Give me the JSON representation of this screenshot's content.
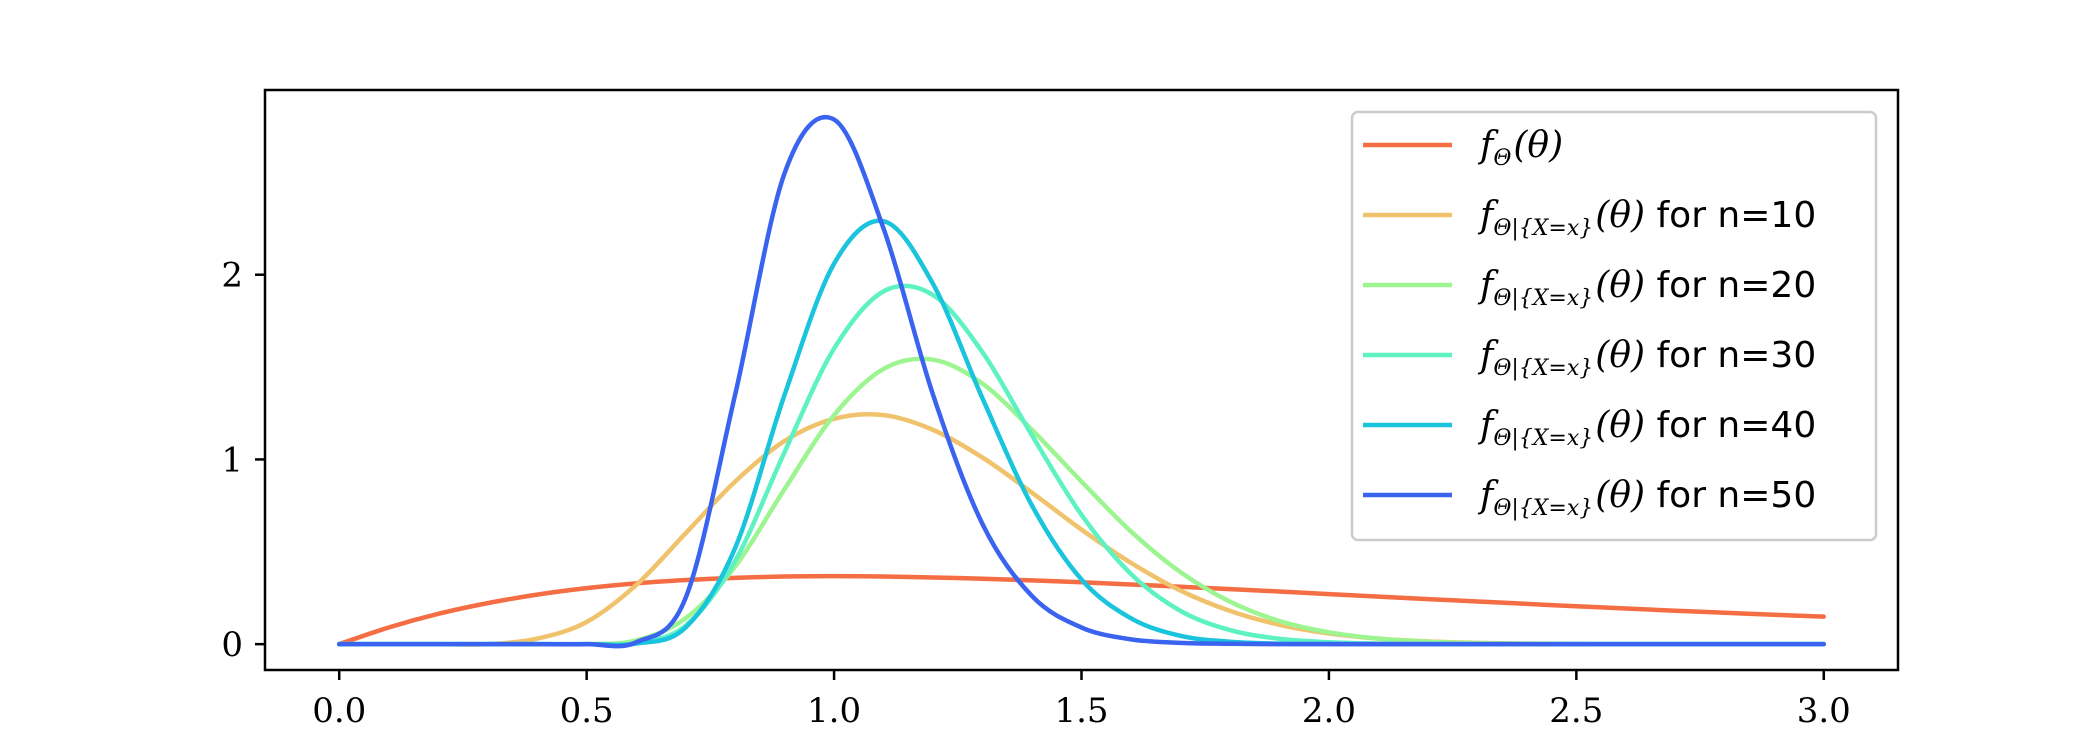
{
  "chart_data": {
    "type": "line",
    "title": "",
    "xlabel": "",
    "ylabel": "",
    "xlim": [
      -0.15,
      3.15
    ],
    "ylim": [
      -0.14,
      3.0
    ],
    "x_ticks": [
      0.0,
      0.5,
      1.0,
      1.5,
      2.0,
      2.5,
      3.0
    ],
    "x_tick_labels": [
      "0.0",
      "0.5",
      "1.0",
      "1.5",
      "2.0",
      "2.5",
      "3.0"
    ],
    "y_ticks": [
      0,
      1,
      2
    ],
    "y_tick_labels": [
      "0",
      "1",
      "2"
    ],
    "grid": false,
    "legend_position": "top-right",
    "x": [
      0.0,
      0.1,
      0.2,
      0.3,
      0.4,
      0.5,
      0.6,
      0.7,
      0.8,
      0.9,
      1.0,
      1.1,
      1.2,
      1.3,
      1.4,
      1.5,
      1.6,
      1.7,
      1.8,
      1.9,
      2.0,
      2.1,
      2.2,
      2.3,
      2.4,
      2.5,
      2.6,
      2.7,
      2.8,
      2.9,
      3.0
    ],
    "series": [
      {
        "label_math": "f",
        "label_sub": "Θ",
        "label_arg": "(θ)",
        "label_suffix": "",
        "color": "#f46d43",
        "values": [
          0.0,
          0.09,
          0.164,
          0.222,
          0.268,
          0.303,
          0.329,
          0.347,
          0.359,
          0.366,
          0.368,
          0.366,
          0.361,
          0.354,
          0.345,
          0.335,
          0.323,
          0.311,
          0.298,
          0.285,
          0.271,
          0.257,
          0.244,
          0.231,
          0.218,
          0.205,
          0.193,
          0.181,
          0.17,
          0.159,
          0.149
        ]
      },
      {
        "label_math": "f",
        "label_sub": "Θ|{X=x}",
        "label_arg": "(θ)",
        "label_suffix": " for n=10",
        "color": "#f0c26b",
        "values": [
          0.0,
          0.0,
          0.0,
          0.0,
          0.03,
          0.12,
          0.32,
          0.6,
          0.88,
          1.1,
          1.22,
          1.24,
          1.16,
          1.01,
          0.82,
          0.62,
          0.44,
          0.29,
          0.18,
          0.105,
          0.058,
          0.03,
          0.015,
          0.007,
          0.003,
          0.001,
          0.0,
          0.0,
          0.0,
          0.0,
          0.0
        ]
      },
      {
        "label_math": "f",
        "label_sub": "Θ|{X=x}",
        "label_arg": "(θ)",
        "label_suffix": " for n=20",
        "color": "#9cf590",
        "values": [
          0.0,
          0.0,
          0.0,
          0.0,
          0.0,
          0.0,
          0.02,
          0.14,
          0.42,
          0.84,
          1.24,
          1.49,
          1.54,
          1.41,
          1.16,
          0.88,
          0.61,
          0.39,
          0.23,
          0.125,
          0.064,
          0.03,
          0.013,
          0.005,
          0.002,
          0.0,
          0.0,
          0.0,
          0.0,
          0.0,
          0.0
        ]
      },
      {
        "label_math": "f",
        "label_sub": "Θ|{X=x}",
        "label_arg": "(θ)",
        "label_suffix": " for n=30",
        "color": "#5ef2c2",
        "values": [
          0.0,
          0.0,
          0.0,
          0.0,
          0.0,
          0.0,
          0.006,
          0.1,
          0.45,
          1.04,
          1.6,
          1.91,
          1.89,
          1.58,
          1.13,
          0.7,
          0.38,
          0.18,
          0.076,
          0.029,
          0.01,
          0.003,
          0.001,
          0.0,
          0.0,
          0.0,
          0.0,
          0.0,
          0.0,
          0.0,
          0.0
        ]
      },
      {
        "label_math": "f",
        "label_sub": "Θ|{X=x}",
        "label_arg": "(θ)",
        "label_suffix": " for n=40",
        "color": "#1ac4dd",
        "values": [
          0.0,
          0.0,
          0.0,
          0.0,
          0.0,
          0.0,
          0.003,
          0.09,
          0.52,
          1.35,
          2.06,
          2.29,
          1.95,
          1.33,
          0.75,
          0.35,
          0.14,
          0.045,
          0.013,
          0.003,
          0.001,
          0.0,
          0.0,
          0.0,
          0.0,
          0.0,
          0.0,
          0.0,
          0.0,
          0.0,
          0.0
        ]
      },
      {
        "label_math": "f",
        "label_sub": "Θ|{X=x}",
        "label_arg": "(θ)",
        "label_suffix": " for n=50",
        "color": "#3a64f0",
        "values": [
          0.0,
          0.0,
          0.0,
          0.0,
          0.0,
          0.0,
          0.01,
          0.25,
          1.35,
          2.55,
          2.84,
          2.25,
          1.35,
          0.65,
          0.26,
          0.09,
          0.026,
          0.007,
          0.002,
          0.0,
          0.0,
          0.0,
          0.0,
          0.0,
          0.0,
          0.0,
          0.0,
          0.0,
          0.0,
          0.0,
          0.0
        ]
      }
    ]
  }
}
